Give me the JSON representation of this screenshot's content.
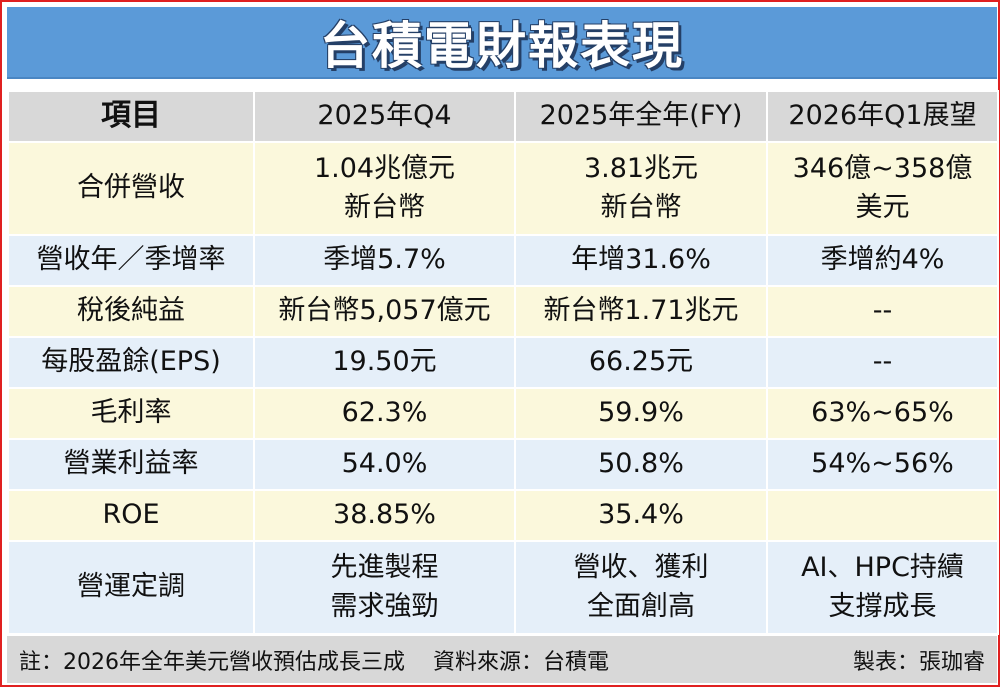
{
  "title": "台積電財報表現",
  "columns": [
    "項目",
    "2025年Q4",
    "2025年全年(FY)",
    "2026年Q1展望"
  ],
  "rows": [
    {
      "item": "合併營收",
      "q4": [
        "1.04兆億元",
        "新台幣"
      ],
      "fy": [
        "3.81兆元",
        "新台幣"
      ],
      "q1": [
        "346億~358億",
        "美元"
      ]
    },
    {
      "item": "營收年／季增率",
      "q4": [
        "季增5.7%"
      ],
      "fy": [
        "年增31.6%"
      ],
      "q1": [
        "季增約4%"
      ]
    },
    {
      "item": "稅後純益",
      "q4": [
        "新台幣5,057億元"
      ],
      "fy": [
        "新台幣1.71兆元"
      ],
      "q1": [
        "--"
      ]
    },
    {
      "item": "每股盈餘(EPS)",
      "q4": [
        "19.50元"
      ],
      "fy": [
        "66.25元"
      ],
      "q1": [
        "--"
      ]
    },
    {
      "item": "毛利率",
      "q4": [
        "62.3%"
      ],
      "fy": [
        "59.9%"
      ],
      "q1": [
        "63%~65%"
      ]
    },
    {
      "item": "營業利益率",
      "q4": [
        "54.0%"
      ],
      "fy": [
        "50.8%"
      ],
      "q1": [
        "54%~56%"
      ]
    },
    {
      "item": "ROE",
      "q4": [
        "38.85%"
      ],
      "fy": [
        "35.4%"
      ],
      "q1": [
        ""
      ]
    },
    {
      "item": "營運定調",
      "q4": [
        "先進製程",
        "需求強勁"
      ],
      "fy": [
        "營收、獲利",
        "全面創高"
      ],
      "q1": [
        "AI、HPC持續",
        "支撐成長"
      ]
    }
  ],
  "footer": {
    "note": "註：2026年全年美元營收預估成長三成",
    "source": "資料來源：台積電",
    "credit": "製表：張珈睿"
  },
  "colors": {
    "title_bg": "#5b9ad8",
    "header_bg": "#d8d8d8",
    "row_yellow": "#fbf8dc",
    "row_blue": "#e5eff9",
    "frame": "#e02020"
  }
}
